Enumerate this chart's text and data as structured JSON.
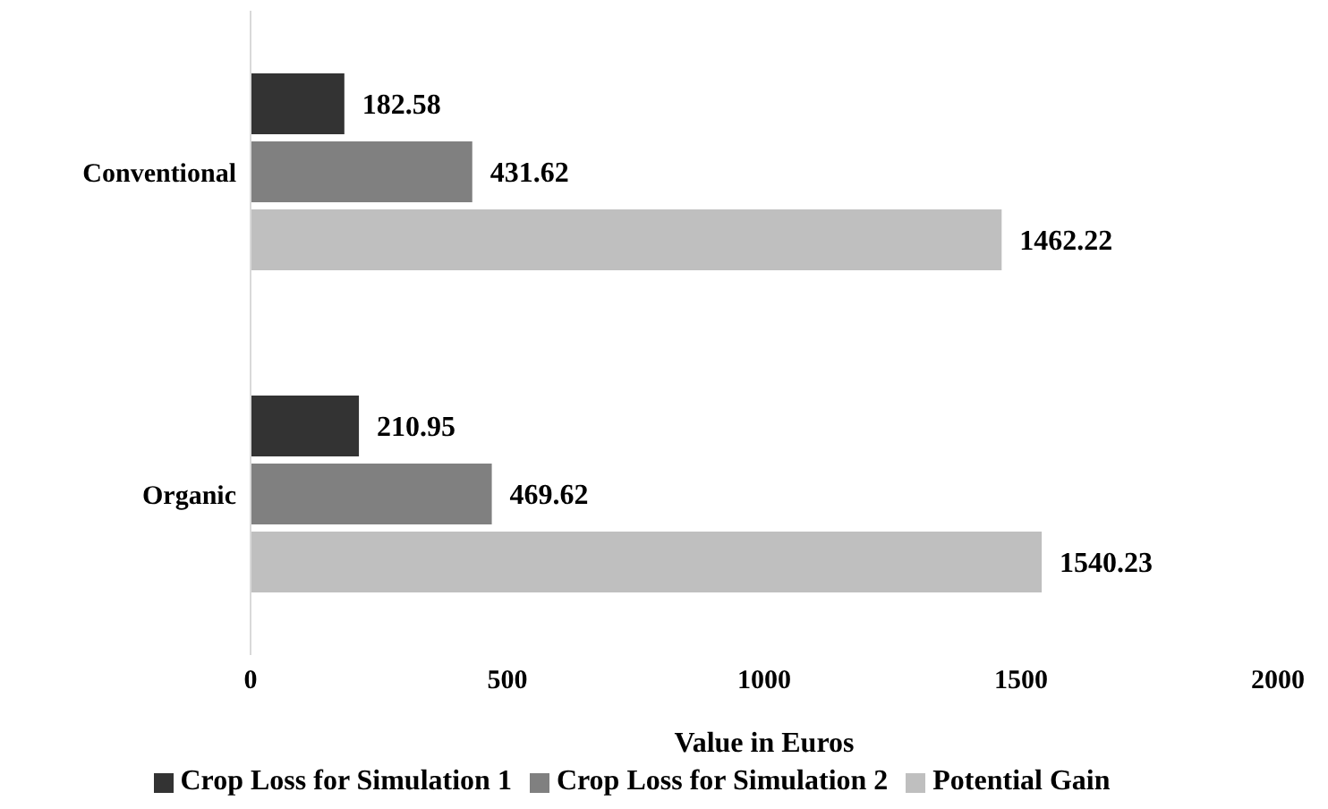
{
  "chart_data": {
    "type": "bar",
    "orientation": "horizontal",
    "categories": [
      "Conventional",
      "Organic"
    ],
    "series": [
      {
        "name": "Crop Loss for Simulation 1",
        "color": "#333333",
        "values": [
          182.58,
          210.95
        ]
      },
      {
        "name": "Crop Loss for Simulation 2",
        "color": "#808080",
        "values": [
          431.62,
          469.62
        ]
      },
      {
        "name": "Potential Gain",
        "color": "#bfbfbf",
        "values": [
          1462.22,
          1540.23
        ]
      }
    ],
    "xlabel": "Value in Euros",
    "xlim": [
      0,
      2000
    ],
    "xticks": [
      0,
      500,
      1000,
      1500,
      2000
    ],
    "grid": false,
    "legend": "bottom",
    "data_labels": true
  }
}
